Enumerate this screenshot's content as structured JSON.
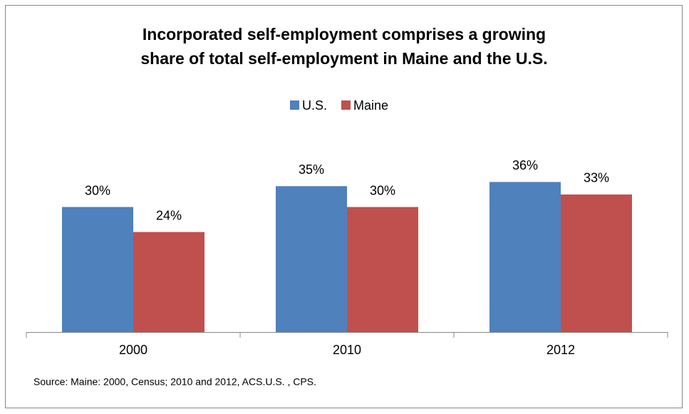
{
  "chart_data": {
    "type": "bar",
    "title": [
      "Incorporated self-employment comprises a growing",
      "share of total self-employment in Maine and the U.S."
    ],
    "categories": [
      "2000",
      "2010",
      "2012"
    ],
    "series": [
      {
        "name": "U.S.",
        "color": "#4f81bd",
        "values": [
          30,
          35,
          36
        ],
        "value_labels": [
          "30%",
          "35%",
          "36%"
        ]
      },
      {
        "name": "Maine",
        "color": "#c0504d",
        "values": [
          24,
          30,
          33
        ],
        "value_labels": [
          "24%",
          "30%",
          "33%"
        ]
      }
    ],
    "legend": "top",
    "source": "Source: Maine: 2000,  Census; 2010 and 2012, ACS.U.S. , CPS."
  }
}
